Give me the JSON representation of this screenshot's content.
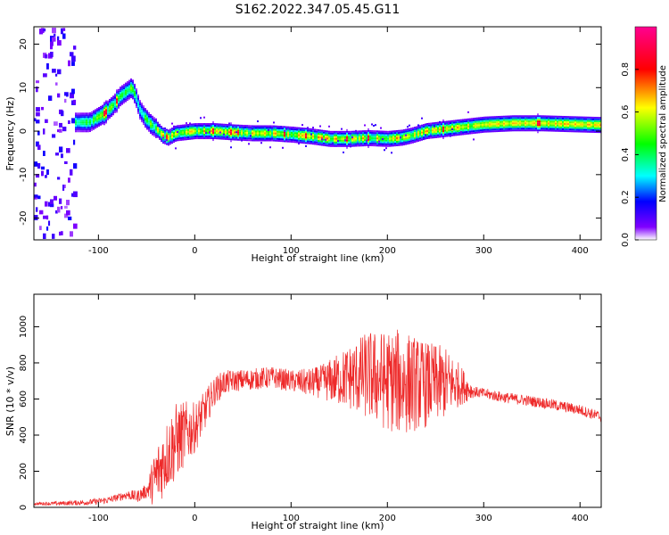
{
  "title": "S162.2022.347.05.45.G11",
  "chart_data": [
    {
      "type": "heatmap",
      "xlabel": "Height of straight line (km)",
      "ylabel": "Frequency (Hz)",
      "xlim": [
        -167,
        422
      ],
      "ylim": [
        -25,
        24
      ],
      "xticks": [
        -100,
        0,
        100,
        200,
        300,
        400
      ],
      "yticks": [
        -20,
        -10,
        0,
        10,
        20
      ],
      "colorbar": {
        "label": "Normalized spectral amplitude",
        "range": [
          0,
          1
        ],
        "ticks": [
          "0.0",
          "0.2",
          "0.4",
          "0.6",
          "0.8"
        ],
        "colors": [
          "#ffffff",
          "#8000ff",
          "#0000ff",
          "#00ffff",
          "#00ff00",
          "#ffff00",
          "#ff0000",
          "#ff0090"
        ]
      },
      "ridge": {
        "x": [
          -130,
          -110,
          -95,
          -85,
          -78,
          -72,
          -66,
          -62,
          -58,
          -52,
          -46,
          -40,
          -34,
          -28,
          -20,
          0,
          20,
          40,
          60,
          80,
          100,
          120,
          140,
          160,
          180,
          200,
          215,
          225,
          240,
          260,
          280,
          300,
          330,
          360,
          390,
          422
        ],
        "y": [
          2,
          2,
          4,
          6,
          8,
          9,
          10,
          8,
          5,
          3,
          1.5,
          0.5,
          -1,
          -1.5,
          -0.5,
          0,
          0,
          -0.3,
          -0.5,
          -0.5,
          -0.8,
          -1.2,
          -1.8,
          -1.8,
          -1.6,
          -1.8,
          -1.5,
          -1,
          0,
          0.5,
          1,
          1.5,
          1.8,
          1.8,
          1.6,
          1.4
        ]
      }
    },
    {
      "type": "line",
      "xlabel": "Height of straight line (km)",
      "ylabel": "SNR (10 * v/v)",
      "xlim": [
        -167,
        422
      ],
      "ylim": [
        0,
        1180
      ],
      "xticks": [
        -100,
        0,
        100,
        200,
        300,
        400
      ],
      "yticks": [
        0,
        200,
        400,
        600,
        800,
        1000
      ],
      "color": "#ee2a2a",
      "envelope": {
        "x": [
          -167,
          -140,
          -110,
          -90,
          -70,
          -60,
          -50,
          -40,
          -30,
          -20,
          -10,
          0,
          10,
          20,
          30,
          40,
          60,
          80,
          100,
          120,
          140,
          160,
          180,
          200,
          220,
          240,
          260,
          275,
          290,
          320,
          360,
          400,
          422
        ],
        "y": [
          20,
          22,
          28,
          40,
          70,
          60,
          90,
          170,
          280,
          360,
          410,
          440,
          530,
          640,
          690,
          700,
          710,
          720,
          700,
          690,
          700,
          720,
          730,
          700,
          690,
          680,
          690,
          680,
          640,
          610,
          580,
          540,
          500
        ]
      },
      "noise_amplitude": {
        "x": [
          -167,
          -80,
          -50,
          -40,
          -20,
          0,
          20,
          40,
          100,
          130,
          160,
          180,
          200,
          215,
          230,
          260,
          275,
          290,
          422
        ],
        "y": [
          8,
          20,
          40,
          180,
          220,
          140,
          80,
          60,
          60,
          90,
          180,
          250,
          280,
          300,
          260,
          200,
          120,
          30,
          30
        ]
      }
    }
  ]
}
